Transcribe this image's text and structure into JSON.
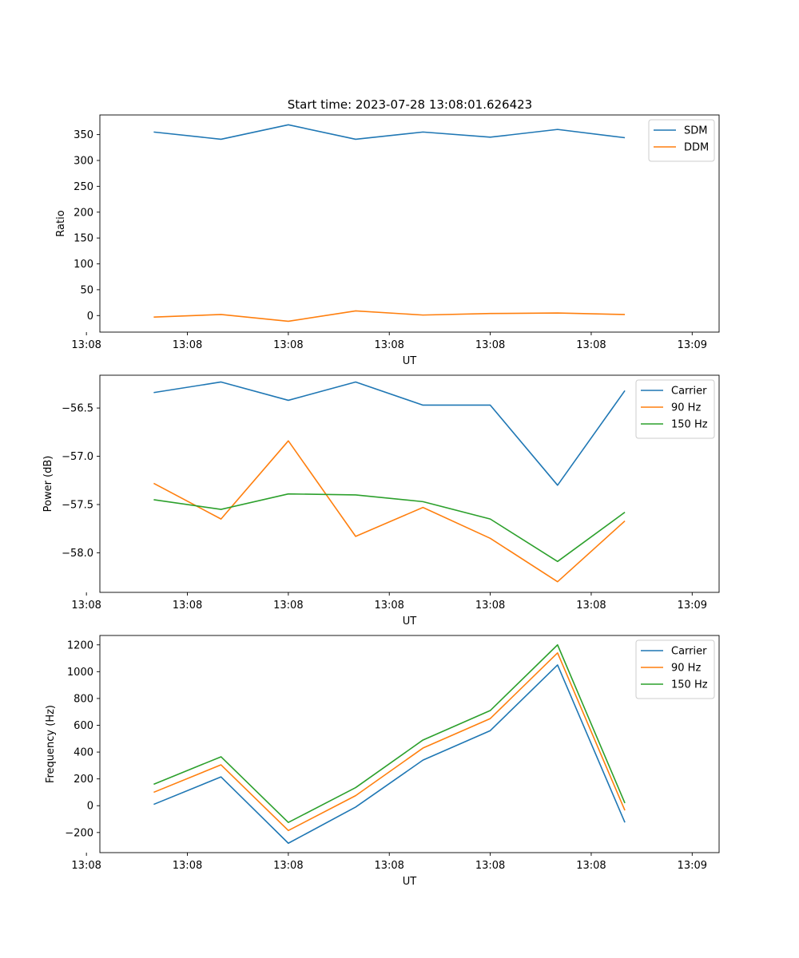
{
  "figure_title": "Start time: 2023-07-28 13:08:01.626423",
  "colors": {
    "blue": "#1f77b4",
    "orange": "#ff7f0e",
    "green": "#2ca02c",
    "axis": "#000000",
    "legend_border": "#cccccc"
  },
  "chart_data": [
    {
      "type": "line",
      "title": "Start time: 2023-07-28 13:08:01.626423",
      "xlabel": "UT",
      "ylabel": "Ratio",
      "x": [
        1,
        2,
        3,
        4,
        5,
        6,
        7,
        8
      ],
      "xlim": [
        0.2,
        9.4
      ],
      "x_ticks": [
        0,
        1.5,
        3,
        4.5,
        6,
        7.5,
        9
      ],
      "x_tick_labels": [
        "13:08",
        "13:08",
        "13:08",
        "13:08",
        "13:08",
        "13:08",
        "13:09"
      ],
      "ylim": [
        -32,
        388
      ],
      "y_ticks": [
        0,
        50,
        100,
        150,
        200,
        250,
        300,
        350
      ],
      "y_tick_labels": [
        "0",
        "50",
        "100",
        "150",
        "200",
        "250",
        "300",
        "350"
      ],
      "legend_position": "top-right",
      "series": [
        {
          "name": "SDM",
          "color": "#1f77b4",
          "values": [
            355,
            341,
            369,
            341,
            355,
            345,
            360,
            344
          ]
        },
        {
          "name": "DDM",
          "color": "#ff7f0e",
          "values": [
            -3,
            2,
            -11,
            9,
            1,
            4,
            5,
            2
          ]
        }
      ]
    },
    {
      "type": "line",
      "title": "",
      "xlabel": "UT",
      "ylabel": "Power (dB)",
      "x": [
        1,
        2,
        3,
        4,
        5,
        6,
        7,
        8
      ],
      "xlim": [
        0.2,
        9.4
      ],
      "x_ticks": [
        0,
        1.5,
        3,
        4.5,
        6,
        7.5,
        9
      ],
      "x_tick_labels": [
        "13:08",
        "13:08",
        "13:08",
        "13:08",
        "13:08",
        "13:08",
        "13:09"
      ],
      "ylim": [
        -58.41,
        -56.16
      ],
      "y_ticks": [
        -58.0,
        -57.5,
        -57.0,
        -56.5
      ],
      "y_tick_labels": [
        "−58.0",
        "−57.5",
        "−57.0",
        "−56.5"
      ],
      "legend_position": "top-right",
      "series": [
        {
          "name": "Carrier",
          "color": "#1f77b4",
          "values": [
            -56.34,
            -56.23,
            -56.42,
            -56.23,
            -56.47,
            -56.47,
            -57.3,
            -56.32
          ]
        },
        {
          "name": "90 Hz",
          "color": "#ff7f0e",
          "values": [
            -57.28,
            -57.65,
            -56.84,
            -57.83,
            -57.53,
            -57.85,
            -58.3,
            -57.67
          ]
        },
        {
          "name": "150 Hz",
          "color": "#2ca02c",
          "values": [
            -57.45,
            -57.55,
            -57.39,
            -57.4,
            -57.47,
            -57.65,
            -58.09,
            -57.58
          ]
        }
      ]
    },
    {
      "type": "line",
      "title": "",
      "xlabel": "UT",
      "ylabel": "Frequency (Hz)",
      "x": [
        1,
        2,
        3,
        4,
        5,
        6,
        7,
        8
      ],
      "xlim": [
        0.2,
        9.4
      ],
      "x_ticks": [
        0,
        1.5,
        3,
        4.5,
        6,
        7.5,
        9
      ],
      "x_tick_labels": [
        "13:08",
        "13:08",
        "13:08",
        "13:08",
        "13:08",
        "13:08",
        "13:09"
      ],
      "ylim": [
        -350,
        1270
      ],
      "y_ticks": [
        -200,
        0,
        200,
        400,
        600,
        800,
        1000,
        1200
      ],
      "y_tick_labels": [
        "−200",
        "0",
        "200",
        "400",
        "600",
        "800",
        "1000",
        "1200"
      ],
      "legend_position": "top-right",
      "series": [
        {
          "name": "Carrier",
          "color": "#1f77b4",
          "values": [
            10,
            215,
            -280,
            -10,
            340,
            560,
            1050,
            -125
          ]
        },
        {
          "name": "90 Hz",
          "color": "#ff7f0e",
          "values": [
            100,
            305,
            -185,
            75,
            430,
            650,
            1140,
            -35
          ]
        },
        {
          "name": "150 Hz",
          "color": "#2ca02c",
          "values": [
            160,
            365,
            -125,
            135,
            490,
            710,
            1200,
            20
          ]
        }
      ]
    }
  ]
}
